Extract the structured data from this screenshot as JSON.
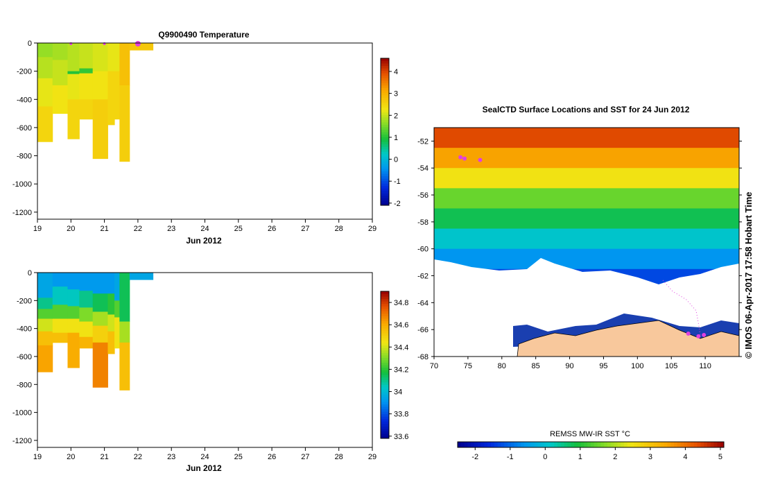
{
  "chart_data": [
    {
      "type": "heatmap",
      "id": "temperature",
      "title": "Q9900490  Temperature",
      "xlabel": "Jun 2012",
      "xlim": [
        19,
        29
      ],
      "ylim": [
        -1250,
        0
      ],
      "x_ticks": [
        "19",
        "20",
        "21",
        "22",
        "23",
        "24",
        "25",
        "26",
        "27",
        "28",
        "29"
      ],
      "y_ticks": [
        "0",
        "-200",
        "-400",
        "-600",
        "-800",
        "-1000",
        "-1200"
      ],
      "colorbar": {
        "min": -2.1,
        "max": 4.6,
        "ticks": [
          "4",
          "3",
          "2",
          "1",
          "0",
          "-1",
          "-2"
        ]
      },
      "profiles": [
        {
          "x0": 19.0,
          "x1": 19.45,
          "depth": 700,
          "values": [
            [
              0,
              -100,
              1.7
            ],
            [
              -100,
              -250,
              1.9
            ],
            [
              -250,
              -450,
              2.2
            ],
            [
              -450,
              -700,
              2.5
            ]
          ]
        },
        {
          "x0": 19.45,
          "x1": 19.9,
          "depth": 500,
          "values": [
            [
              0,
              -120,
              1.8
            ],
            [
              -120,
              -300,
              2.0
            ],
            [
              -300,
              -500,
              2.3
            ]
          ]
        },
        {
          "x0": 19.9,
          "x1": 20.25,
          "depth": 680,
          "values": [
            [
              0,
              -200,
              1.9
            ],
            [
              -200,
              -220,
              1.0
            ],
            [
              -220,
              -400,
              2.2
            ],
            [
              -400,
              -680,
              2.5
            ]
          ]
        },
        {
          "x0": 20.25,
          "x1": 20.65,
          "depth": 540,
          "values": [
            [
              0,
              -180,
              2.0
            ],
            [
              -180,
              -215,
              1.1
            ],
            [
              -215,
              -400,
              2.3
            ],
            [
              -400,
              -540,
              2.5
            ]
          ]
        },
        {
          "x0": 20.65,
          "x1": 21.1,
          "depth": 820,
          "values": [
            [
              0,
              -200,
              2.1
            ],
            [
              -200,
              -400,
              2.3
            ],
            [
              -400,
              -820,
              2.6
            ]
          ]
        },
        {
          "x0": 21.1,
          "x1": 21.3,
          "depth": 580,
          "values": [
            [
              0,
              -200,
              2.2
            ],
            [
              -200,
              -580,
              2.5
            ]
          ]
        },
        {
          "x0": 21.3,
          "x1": 21.45,
          "depth": 540,
          "values": [
            [
              0,
              -200,
              2.2
            ],
            [
              -200,
              -540,
              2.5
            ]
          ]
        },
        {
          "x0": 21.45,
          "x1": 21.75,
          "depth": 840,
          "values": [
            [
              0,
              -300,
              2.8
            ],
            [
              -300,
              -840,
              2.6
            ]
          ]
        },
        {
          "x0": 21.75,
          "x1": 22.45,
          "depth": 50,
          "values": [
            [
              0,
              -50,
              2.7
            ]
          ]
        }
      ],
      "markers": [
        20.0,
        21.0,
        22.0
      ]
    },
    {
      "type": "heatmap",
      "id": "salinity",
      "xlabel": "Jun 2012",
      "xlim": [
        19,
        29
      ],
      "ylim": [
        -1250,
        0
      ],
      "x_ticks": [
        "19",
        "20",
        "21",
        "22",
        "23",
        "24",
        "25",
        "26",
        "27",
        "28",
        "29"
      ],
      "y_ticks": [
        "0",
        "-200",
        "-400",
        "-600",
        "-800",
        "-1000",
        "-1200"
      ],
      "colorbar": {
        "min": 33.58,
        "max": 34.9,
        "ticks": [
          "34.8",
          "34.6",
          "34.4",
          "34.2",
          "34",
          "33.8",
          "33.6"
        ]
      },
      "profiles": [
        {
          "x0": 19.0,
          "x1": 19.45,
          "depth": 710,
          "values": [
            [
              0,
              -180,
              33.95
            ],
            [
              -180,
              -260,
              34.1
            ],
            [
              -260,
              -330,
              34.25
            ],
            [
              -330,
              -420,
              34.4
            ],
            [
              -420,
              -520,
              34.55
            ],
            [
              -520,
              -710,
              34.62
            ]
          ]
        },
        {
          "x0": 19.45,
          "x1": 19.9,
          "depth": 500,
          "values": [
            [
              0,
              -100,
              33.92
            ],
            [
              -100,
              -230,
              34.05
            ],
            [
              -230,
              -330,
              34.25
            ],
            [
              -330,
              -430,
              34.45
            ],
            [
              -430,
              -500,
              34.55
            ]
          ]
        },
        {
          "x0": 19.9,
          "x1": 20.25,
          "depth": 680,
          "values": [
            [
              0,
              -120,
              33.92
            ],
            [
              -120,
              -240,
              34.05
            ],
            [
              -240,
              -330,
              34.25
            ],
            [
              -330,
              -430,
              34.45
            ],
            [
              -430,
              -680,
              34.6
            ]
          ]
        },
        {
          "x0": 20.25,
          "x1": 20.65,
          "depth": 540,
          "values": [
            [
              0,
              -130,
              33.92
            ],
            [
              -130,
              -250,
              34.1
            ],
            [
              -250,
              -350,
              34.3
            ],
            [
              -350,
              -460,
              34.45
            ],
            [
              -460,
              -540,
              34.58
            ]
          ]
        },
        {
          "x0": 20.65,
          "x1": 21.1,
          "depth": 820,
          "values": [
            [
              0,
              -150,
              33.92
            ],
            [
              -150,
              -280,
              34.15
            ],
            [
              -280,
              -380,
              34.35
            ],
            [
              -380,
              -500,
              34.5
            ],
            [
              -500,
              -820,
              34.68
            ]
          ]
        },
        {
          "x0": 21.1,
          "x1": 21.3,
          "depth": 580,
          "values": [
            [
              0,
              -150,
              33.92
            ],
            [
              -150,
              -300,
              34.2
            ],
            [
              -300,
              -420,
              34.4
            ],
            [
              -420,
              -580,
              34.55
            ]
          ]
        },
        {
          "x0": 21.3,
          "x1": 21.45,
          "depth": 540,
          "values": [
            [
              0,
              -200,
              33.95
            ],
            [
              -200,
              -320,
              34.25
            ],
            [
              -320,
              -540,
              34.45
            ]
          ]
        },
        {
          "x0": 21.45,
          "x1": 21.75,
          "depth": 840,
          "values": [
            [
              0,
              -350,
              34.15
            ],
            [
              -350,
              -500,
              34.35
            ],
            [
              -500,
              -840,
              34.55
            ]
          ]
        },
        {
          "x0": 21.75,
          "x1": 22.45,
          "depth": 50,
          "values": [
            [
              0,
              -50,
              33.95
            ]
          ]
        }
      ]
    },
    {
      "type": "heatmap",
      "id": "sst-map",
      "title": "SealCTD Surface Locations and SST for 24 Jun 2012",
      "xlim": [
        70,
        115
      ],
      "ylim": [
        -68,
        -51
      ],
      "x_ticks": [
        "70",
        "75",
        "80",
        "85",
        "90",
        "95",
        "100",
        "105",
        "110"
      ],
      "y_ticks": [
        "-52",
        "-54",
        "-56",
        "-58",
        "-60",
        "-62",
        "-64",
        "-66",
        "-68"
      ],
      "side_text": "© IMOS 06-Apr-2017 17:58 Hobart Time",
      "colorbar": {
        "label": "REMSS MW-IR SST °C",
        "min": -2.5,
        "max": 5.1,
        "ticks": [
          "-2",
          "-1",
          "0",
          "1",
          "2",
          "3",
          "4",
          "5"
        ]
      },
      "sst_bands": [
        {
          "lat": -51.0,
          "sst": 4.4
        },
        {
          "lat": -52.5,
          "sst": 3.5
        },
        {
          "lat": -54.0,
          "sst": 2.5
        },
        {
          "lat": -55.5,
          "sst": 1.5
        },
        {
          "lat": -57.0,
          "sst": 0.8
        },
        {
          "lat": -58.5,
          "sst": 0.1
        },
        {
          "lat": -60.0,
          "sst": -0.6
        },
        {
          "lat": -61.5,
          "sst": -1.3
        }
      ],
      "seal_locations": [
        [
          73.9,
          -53.2
        ],
        [
          74.5,
          -53.3
        ],
        [
          76.8,
          -53.4
        ],
        [
          107.5,
          -66.3
        ],
        [
          109.0,
          -66.5
        ],
        [
          109.8,
          -66.4
        ]
      ],
      "track": [
        [
          104.0,
          -62.3
        ],
        [
          105.5,
          -63.3
        ],
        [
          107.0,
          -64.4
        ],
        [
          108.0,
          -65.3
        ],
        [
          108.5,
          -66.2
        ]
      ]
    }
  ]
}
